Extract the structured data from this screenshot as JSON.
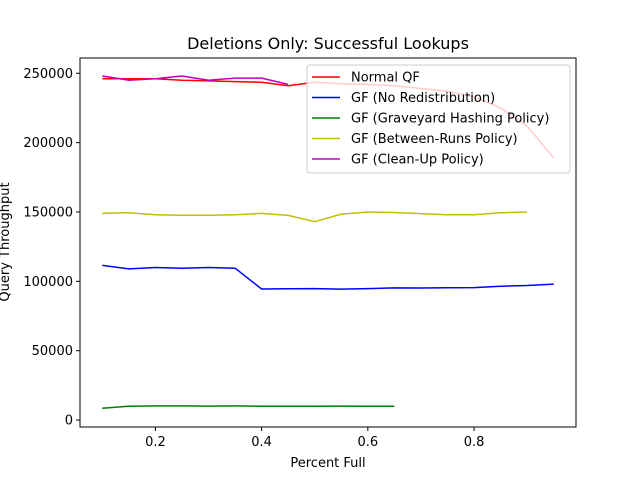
{
  "chart_data": {
    "type": "line",
    "title": "Deletions Only: Successful Lookups",
    "xlabel": "Percent Full",
    "ylabel": "Query Throughput",
    "xlim": [
      0.058,
      0.992
    ],
    "ylim": [
      -5000,
      261000
    ],
    "xticks": [
      0.2,
      0.4,
      0.6,
      0.8
    ],
    "xtick_labels": [
      "0.2",
      "0.4",
      "0.6",
      "0.8"
    ],
    "yticks": [
      0,
      50000,
      100000,
      150000,
      200000,
      250000
    ],
    "ytick_labels": [
      "0",
      "50000",
      "100000",
      "150000",
      "200000",
      "250000"
    ],
    "grid": false,
    "legend_position": "top-right",
    "series": [
      {
        "name": "Normal QF",
        "color": "#ff0000",
        "x": [
          0.1,
          0.15,
          0.2,
          0.25,
          0.3,
          0.35,
          0.4,
          0.45,
          0.5,
          0.55,
          0.6,
          0.65,
          0.7,
          0.75,
          0.8,
          0.85,
          0.9,
          0.95
        ],
        "y": [
          246000,
          246000,
          246000,
          245000,
          244500,
          244000,
          243500,
          241000,
          243500,
          242500,
          242000,
          241000,
          239000,
          237000,
          233000,
          225000,
          212000,
          189000
        ]
      },
      {
        "name": "GF (No Redistribution)",
        "color": "#0000ff",
        "x": [
          0.1,
          0.15,
          0.2,
          0.25,
          0.3,
          0.35,
          0.4,
          0.45,
          0.5,
          0.55,
          0.6,
          0.65,
          0.7,
          0.75,
          0.8,
          0.85,
          0.9,
          0.95
        ],
        "y": [
          111500,
          109000,
          110000,
          109500,
          110000,
          109500,
          94500,
          94700,
          94800,
          94400,
          94800,
          95300,
          95200,
          95400,
          95500,
          96500,
          97000,
          98000
        ]
      },
      {
        "name": "GF (Graveyard Hashing Policy)",
        "color": "#008000",
        "x": [
          0.1,
          0.15,
          0.2,
          0.25,
          0.3,
          0.35,
          0.4,
          0.45,
          0.5,
          0.55,
          0.6,
          0.65
        ],
        "y": [
          8500,
          10000,
          10200,
          10200,
          10100,
          10200,
          10000,
          10000,
          10000,
          10100,
          10000,
          10000
        ]
      },
      {
        "name": "GF (Between-Runs Policy)",
        "color": "#bfbf00",
        "x": [
          0.1,
          0.15,
          0.2,
          0.25,
          0.3,
          0.35,
          0.4,
          0.45,
          0.5,
          0.55,
          0.6,
          0.65,
          0.7,
          0.75,
          0.8,
          0.85,
          0.9
        ],
        "y": [
          149000,
          149500,
          148000,
          147700,
          147700,
          148000,
          149000,
          147500,
          143000,
          148500,
          150000,
          149600,
          148800,
          148000,
          148000,
          149500,
          150000
        ]
      },
      {
        "name": "GF (Clean-Up Policy)",
        "color": "#bf00bf",
        "x": [
          0.1,
          0.15,
          0.2,
          0.25,
          0.3,
          0.35,
          0.4,
          0.45
        ],
        "y": [
          248000,
          245000,
          246000,
          248000,
          245000,
          246500,
          246500,
          242000
        ]
      }
    ]
  }
}
